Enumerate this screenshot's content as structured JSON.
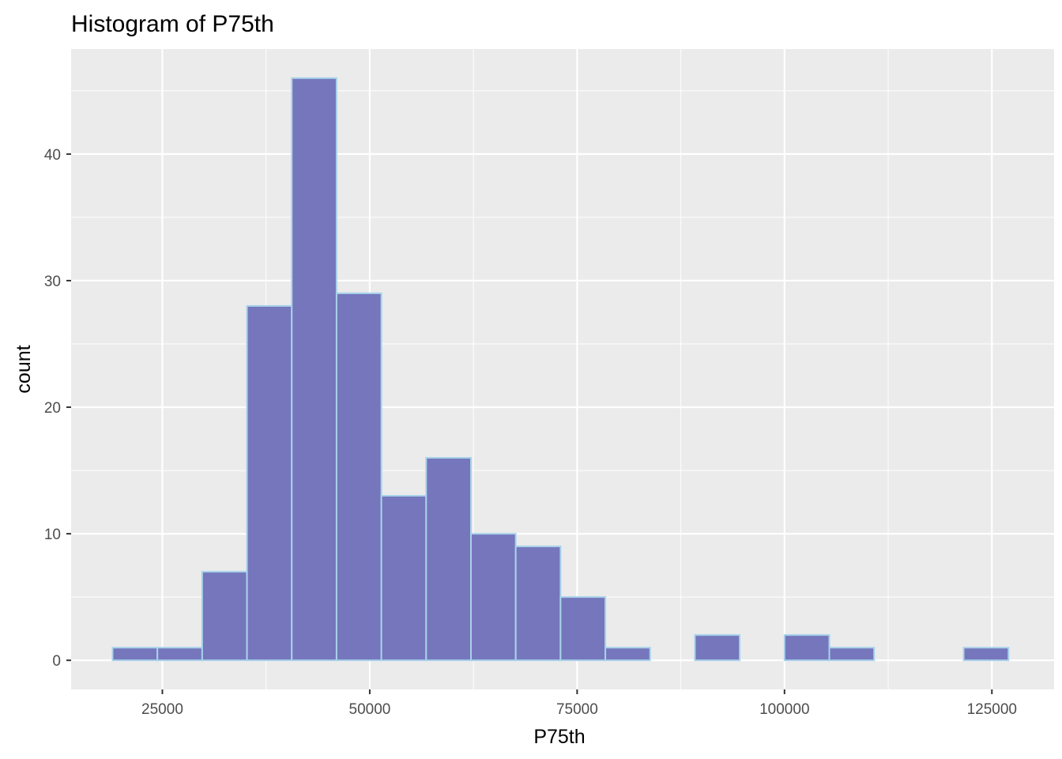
{
  "chart_data": {
    "type": "bar",
    "title": "Histogram of P75th",
    "xlabel": "P75th",
    "ylabel": "count",
    "xlim": [
      14000,
      132500
    ],
    "ylim": [
      -2.3,
      48.3
    ],
    "x_ticks": [
      25000,
      50000,
      75000,
      100000,
      125000
    ],
    "x_tick_labels": [
      "25000",
      "50000",
      "75000",
      "100000",
      "125000"
    ],
    "y_ticks": [
      0,
      10,
      20,
      30,
      40
    ],
    "y_tick_labels": [
      "0",
      "10",
      "20",
      "30",
      "40"
    ],
    "bin_edges": [
      19000,
      24400,
      29800,
      35200,
      40600,
      46000,
      51400,
      56800,
      62200,
      67600,
      73000,
      78400,
      83800,
      89200,
      94600,
      100000,
      105400,
      110800,
      116200,
      121600,
      127000
    ],
    "values": [
      1,
      1,
      7,
      28,
      46,
      29,
      13,
      16,
      10,
      9,
      5,
      1,
      0,
      2,
      0,
      2,
      1,
      0,
      0,
      1
    ],
    "grid": true,
    "colors": {
      "bar_fill": "#7576BC",
      "bar_outline": "#A8D2EA",
      "panel_background": "#EBEBEB",
      "grid_line": "#FFFFFF",
      "tick_mark": "#333333"
    }
  }
}
